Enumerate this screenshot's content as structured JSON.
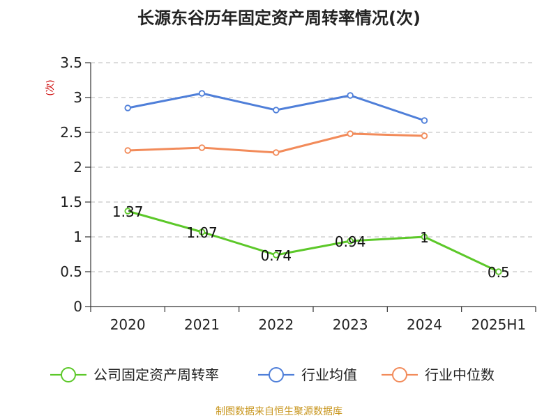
{
  "chart_data": {
    "type": "line",
    "title": "长源东谷历年固定资产周转率情况(次)",
    "ylabel": "(次)",
    "xlabel": "",
    "categories": [
      "2020",
      "2021",
      "2022",
      "2023",
      "2024",
      "2025H1"
    ],
    "ylim": [
      0,
      3.5
    ],
    "yticks": [
      "0",
      "0.5",
      "1",
      "1.5",
      "2",
      "2.5",
      "3",
      "3.5"
    ],
    "grid": true,
    "legend_position": "bottom",
    "series": [
      {
        "name": "公司固定资产周转率",
        "color": "#5cc829",
        "values": [
          1.37,
          1.07,
          0.74,
          0.94,
          1.0,
          0.5
        ],
        "labels": [
          "1.37",
          "1.07",
          "0.74",
          "0.94",
          "1",
          "0.5"
        ]
      },
      {
        "name": "行业均值",
        "color": "#4f7fd9",
        "values": [
          2.85,
          3.06,
          2.82,
          3.03,
          2.67,
          null
        ]
      },
      {
        "name": "行业中位数",
        "color": "#f28b5a",
        "values": [
          2.24,
          2.28,
          2.21,
          2.48,
          2.45,
          null
        ]
      }
    ]
  },
  "source": "制图数据来自恒生聚源数据库"
}
